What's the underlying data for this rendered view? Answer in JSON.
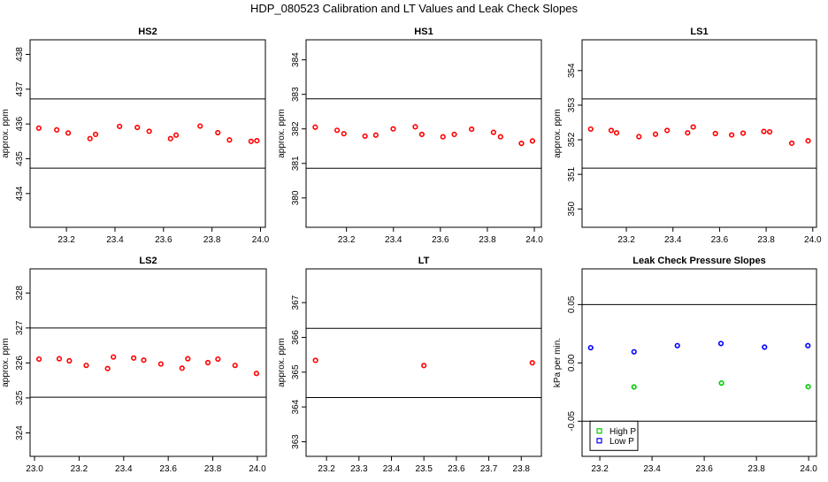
{
  "title": "HDP_080523 Calibration and LT Values and Leak Check Slopes",
  "chart_data": [
    {
      "type": "scatter",
      "title": "HS2",
      "ylabel": "approx. ppm",
      "xlim": [
        23.05,
        24.02
      ],
      "ylim": [
        433.03,
        438.42
      ],
      "xticks": [
        "23.2",
        "23.4",
        "23.6",
        "23.8",
        "24.0"
      ],
      "yticks": [
        "434",
        "435",
        "436",
        "437",
        "438"
      ],
      "hlines": [
        436.72,
        434.73
      ],
      "color": "#ff0000",
      "grid": false,
      "series": [
        {
          "x": [
            23.086,
            23.16,
            23.207,
            23.297,
            23.32,
            23.419,
            23.492,
            23.541,
            23.629,
            23.652,
            23.751,
            23.824,
            23.872,
            23.961,
            23.985
          ],
          "y": [
            435.88,
            435.83,
            435.74,
            435.58,
            435.7,
            435.93,
            435.9,
            435.79,
            435.58,
            435.68,
            435.94,
            435.75,
            435.54,
            435.5,
            435.52
          ]
        }
      ]
    },
    {
      "type": "scatter",
      "title": "HS1",
      "ylabel": "approx. ppm",
      "xlim": [
        23.028,
        24.03
      ],
      "ylim": [
        379.15,
        384.58
      ],
      "xticks": [
        "23.2",
        "23.4",
        "23.6",
        "23.8",
        "24.0"
      ],
      "yticks": [
        "380",
        "381",
        "382",
        "383",
        "384"
      ],
      "hlines": [
        382.87,
        380.86
      ],
      "color": "#ff0000",
      "grid": false,
      "series": [
        {
          "x": [
            23.067,
            23.16,
            23.189,
            23.279,
            23.325,
            23.399,
            23.493,
            23.521,
            23.611,
            23.659,
            23.733,
            23.826,
            23.856,
            23.945,
            23.992
          ],
          "y": [
            382.05,
            381.96,
            381.86,
            381.79,
            381.82,
            382.0,
            382.06,
            381.84,
            381.77,
            381.84,
            381.99,
            381.9,
            381.77,
            381.58,
            381.65
          ]
        }
      ]
    },
    {
      "type": "scatter",
      "title": "LS1",
      "ylabel": "approx. ppm",
      "xlim": [
        23.01,
        24.016
      ],
      "ylim": [
        349.47,
        354.89
      ],
      "xticks": [
        "23.2",
        "23.4",
        "23.6",
        "23.8",
        "24.0"
      ],
      "yticks": [
        "350",
        "351",
        "352",
        "353",
        "354"
      ],
      "hlines": [
        353.18,
        351.18
      ],
      "color": "#ff0000",
      "grid": false,
      "series": [
        {
          "x": [
            23.047,
            23.135,
            23.158,
            23.254,
            23.325,
            23.375,
            23.463,
            23.487,
            23.582,
            23.652,
            23.701,
            23.79,
            23.815,
            23.91,
            23.98
          ],
          "y": [
            352.31,
            352.27,
            352.2,
            352.09,
            352.16,
            352.27,
            352.2,
            352.37,
            352.18,
            352.14,
            352.19,
            352.24,
            352.23,
            351.9,
            351.97
          ]
        }
      ]
    },
    {
      "type": "scatter",
      "title": "LS2",
      "ylabel": "approx. ppm",
      "xlim": [
        22.98,
        24.04
      ],
      "ylim": [
        323.33,
        328.69
      ],
      "xticks": [
        "23.0",
        "23.2",
        "23.4",
        "23.6",
        "23.8",
        "24.0"
      ],
      "yticks": [
        "324",
        "325",
        "326",
        "327",
        "328"
      ],
      "hlines": [
        327.0,
        325.02
      ],
      "color": "#ff0000",
      "grid": false,
      "series": [
        {
          "x": [
            23.02,
            23.111,
            23.156,
            23.232,
            23.328,
            23.354,
            23.445,
            23.49,
            23.567,
            23.662,
            23.688,
            23.778,
            23.823,
            23.9,
            23.996
          ],
          "y": [
            326.11,
            326.12,
            326.06,
            325.93,
            325.84,
            326.17,
            326.14,
            326.08,
            325.97,
            325.85,
            326.12,
            326.01,
            326.11,
            325.93,
            325.7
          ]
        }
      ]
    },
    {
      "type": "scatter",
      "title": "LT",
      "ylabel": "approx. ppm",
      "xlim": [
        23.137,
        23.862
      ],
      "ylim": [
        362.58,
        367.97
      ],
      "xticks": [
        "23.2",
        "23.3",
        "23.4",
        "23.5",
        "23.6",
        "23.7",
        "23.8"
      ],
      "yticks": [
        "363",
        "364",
        "365",
        "366",
        "367"
      ],
      "hlines": [
        366.26,
        364.27
      ],
      "color": "#ff0000",
      "grid": false,
      "series": [
        {
          "x": [
            23.166,
            23.5,
            23.834
          ],
          "y": [
            365.34,
            365.19,
            365.27
          ]
        }
      ]
    },
    {
      "type": "scatter",
      "title": "Leak Check Pressure Slopes",
      "ylabel": "kPa per min.",
      "xlim": [
        23.132,
        24.03
      ],
      "ylim": [
        -0.0801,
        0.0806
      ],
      "xticks": [
        "23.2",
        "23.4",
        "23.6",
        "23.8",
        "24.0"
      ],
      "yticks": [
        "-0.05",
        "0.00",
        "0.05"
      ],
      "hlines": [
        0.05,
        -0.05
      ],
      "grid": false,
      "legend": "bottom-left",
      "series": [
        {
          "name": "High P",
          "color": "#00cc00",
          "x": [
            23.331,
            23.666,
            23.998
          ],
          "y": [
            -0.0206,
            -0.0173,
            -0.0204
          ]
        },
        {
          "name": "Low P",
          "color": "#0000ff",
          "x": [
            23.165,
            23.331,
            23.497,
            23.664,
            23.831,
            23.997
          ],
          "y": [
            0.013,
            0.0095,
            0.0148,
            0.0166,
            0.0135,
            0.0148
          ]
        }
      ]
    }
  ]
}
